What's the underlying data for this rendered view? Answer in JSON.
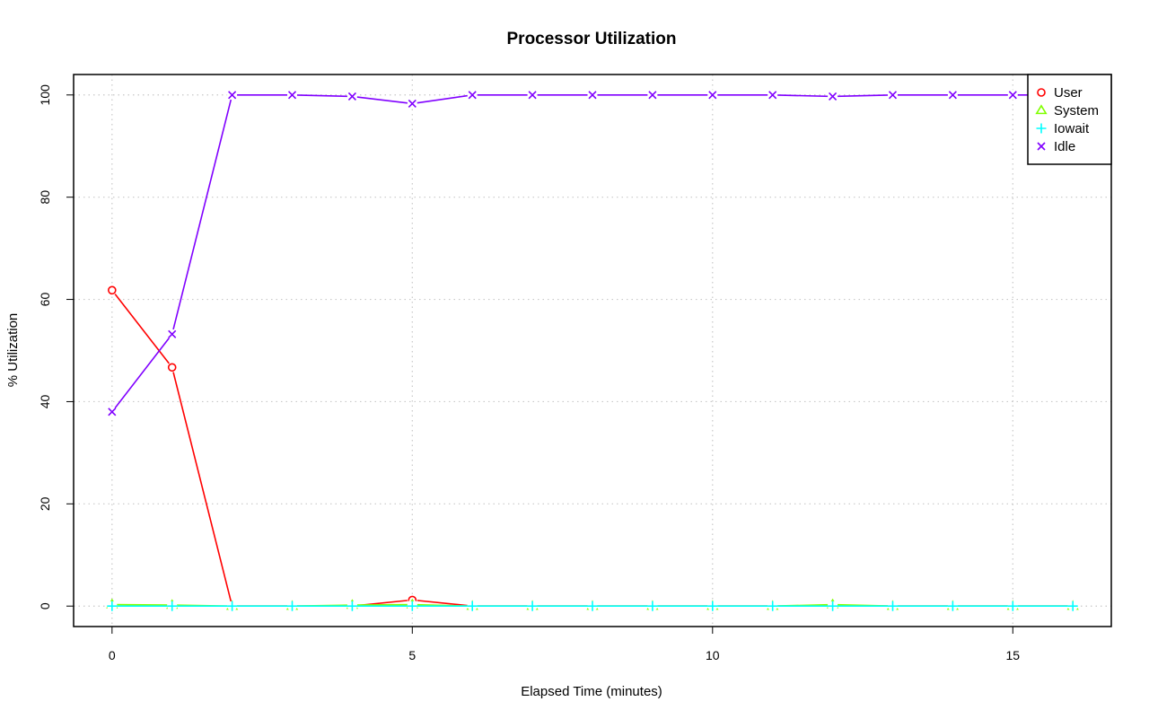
{
  "chart_data": {
    "type": "line",
    "title": "Processor Utilization",
    "xlabel": "Elapsed Time (minutes)",
    "ylabel": "% Utilization",
    "xlim": [
      -0.64,
      16.64
    ],
    "ylim": [
      -4,
      104
    ],
    "x_ticks": [
      0,
      5,
      10,
      15
    ],
    "y_ticks": [
      0,
      20,
      40,
      60,
      80,
      100
    ],
    "grid": true,
    "legend_position": "top-right",
    "x": [
      0,
      1,
      2,
      3,
      4,
      5,
      6,
      7,
      8,
      9,
      10,
      11,
      12,
      13,
      14,
      15,
      16
    ],
    "series": [
      {
        "name": "User",
        "color": "#ff0000",
        "marker": "circle",
        "values": [
          61.8,
          46.7,
          0,
          0,
          0,
          1.2,
          0,
          0,
          0,
          0,
          0,
          0,
          0,
          0,
          0,
          0,
          0
        ]
      },
      {
        "name": "System",
        "color": "#80ff00",
        "marker": "triangle",
        "values": [
          0.3,
          0.2,
          0,
          0,
          0.2,
          0.3,
          0,
          0,
          0,
          0,
          0,
          0,
          0.3,
          0,
          0,
          0,
          0
        ]
      },
      {
        "name": "Iowait",
        "color": "#00ffff",
        "marker": "plus",
        "values": [
          0,
          0,
          0,
          0,
          0,
          0,
          0,
          0,
          0,
          0,
          0,
          0,
          0,
          0,
          0,
          0,
          0
        ]
      },
      {
        "name": "Idle",
        "color": "#8000ff",
        "marker": "cross",
        "values": [
          38,
          53.2,
          100,
          100,
          99.7,
          98.3,
          100,
          100,
          100,
          100,
          100,
          100,
          99.7,
          100,
          100,
          100,
          100
        ]
      }
    ]
  }
}
